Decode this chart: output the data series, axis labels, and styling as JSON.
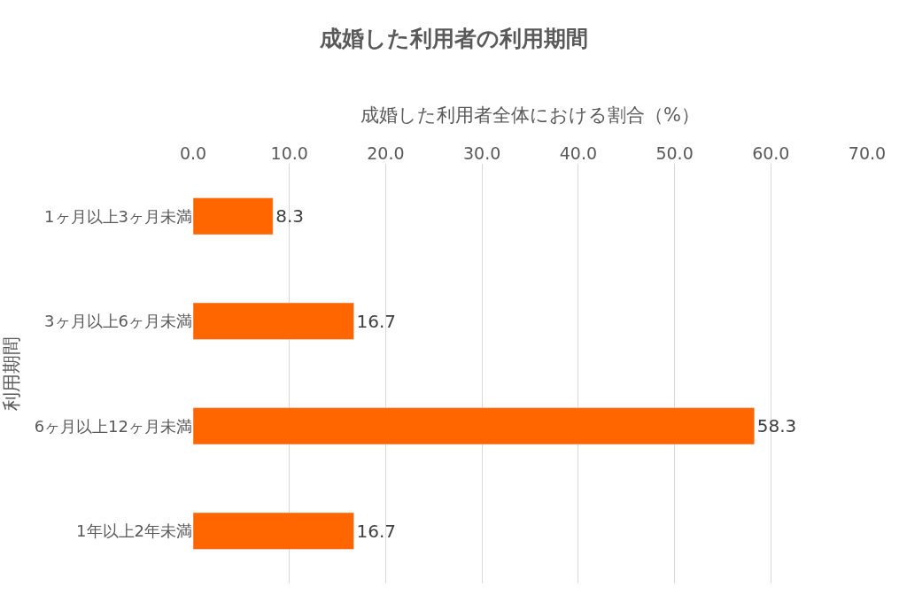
{
  "chart_data": {
    "type": "bar",
    "orientation": "horizontal",
    "title": "成婚した利用者の利用期間",
    "xlabel": "成婚した利用者全体における割合（%）",
    "ylabel": "利用期間",
    "categories": [
      "1ヶ月以上3ヶ月未満",
      "3ヶ月以上6ヶ月未満",
      "6ヶ月以上12ヶ月未満",
      "1年以上2年未満"
    ],
    "values": [
      8.3,
      16.7,
      58.3,
      16.7
    ],
    "color": "#ff6600",
    "xlim": [
      0,
      70
    ],
    "xticks": [
      {
        "value": 0,
        "label": "0.0"
      },
      {
        "value": 10,
        "label": "10.0"
      },
      {
        "value": 20,
        "label": "20.0"
      },
      {
        "value": 30,
        "label": "30.0"
      },
      {
        "value": 40,
        "label": "40.0"
      },
      {
        "value": 50,
        "label": "50.0"
      },
      {
        "value": 60,
        "label": "60.0"
      },
      {
        "value": 70,
        "label": "70.0"
      }
    ],
    "grid": "x",
    "data_labels": true
  }
}
